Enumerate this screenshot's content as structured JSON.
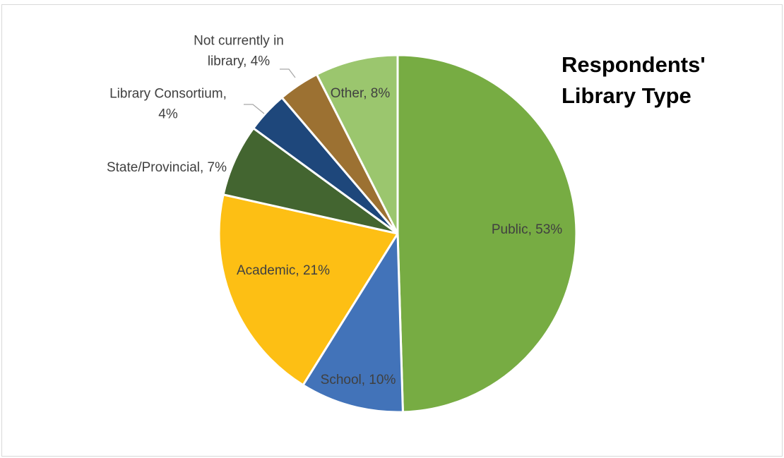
{
  "chart_data": {
    "type": "pie",
    "title_lines": [
      "Respondents'",
      "Library Type"
    ],
    "slices": [
      {
        "name": "Public",
        "value": 53,
        "color": "#77ac43",
        "label_lines": [
          "Public, 53%"
        ]
      },
      {
        "name": "School",
        "value": 10,
        "color": "#4273b9",
        "label_lines": [
          "School, 10%"
        ]
      },
      {
        "name": "Academic",
        "value": 21,
        "color": "#fdbf14",
        "label_lines": [
          "Academic, 21%"
        ]
      },
      {
        "name": "State/Provincial",
        "value": 7,
        "color": "#436530",
        "label_lines": [
          "State/Provincial, 7%"
        ]
      },
      {
        "name": "Library Consortium",
        "value": 4,
        "color": "#1e477b",
        "label_lines": [
          "Library Consortium,",
          "4%"
        ]
      },
      {
        "name": "Not currently in library",
        "value": 4,
        "color": "#9c7132",
        "label_lines": [
          "Not currently in",
          "library, 4%"
        ]
      },
      {
        "name": "Other",
        "value": 8,
        "color": "#9bc66e",
        "label_lines": [
          "Other, 8%"
        ]
      }
    ]
  }
}
